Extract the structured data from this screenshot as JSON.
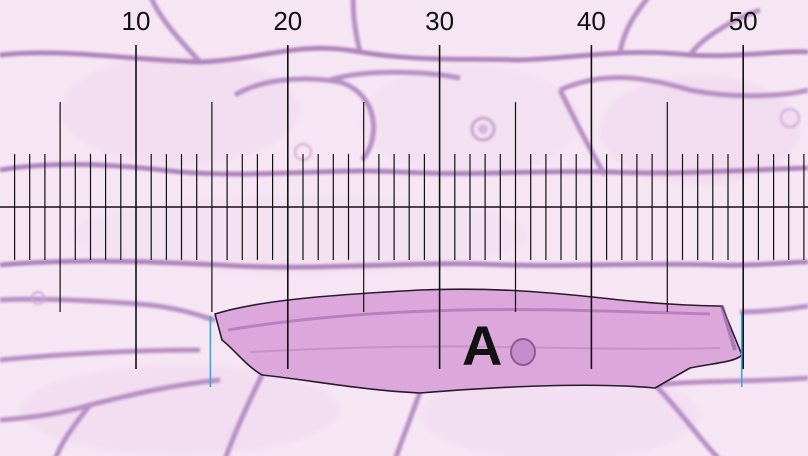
{
  "image": {
    "description_free": true,
    "cell_label": "A",
    "reticle": {
      "scale_labels": [
        "10",
        "20",
        "30",
        "40",
        "50"
      ],
      "units_per_label": 10,
      "line_color": "#111111",
      "highlight_color": "#3aa7d8"
    },
    "measurement_marks": {
      "start_unit": 15,
      "end_unit": 50
    },
    "colors": {
      "background": "#f6e6f4",
      "cell_wall": "#b88fc4",
      "cell_wall_dark": "#8b5c98",
      "selected_cell_fill": "#dba5d9",
      "selected_cell_outline": "#2a1a30"
    }
  }
}
